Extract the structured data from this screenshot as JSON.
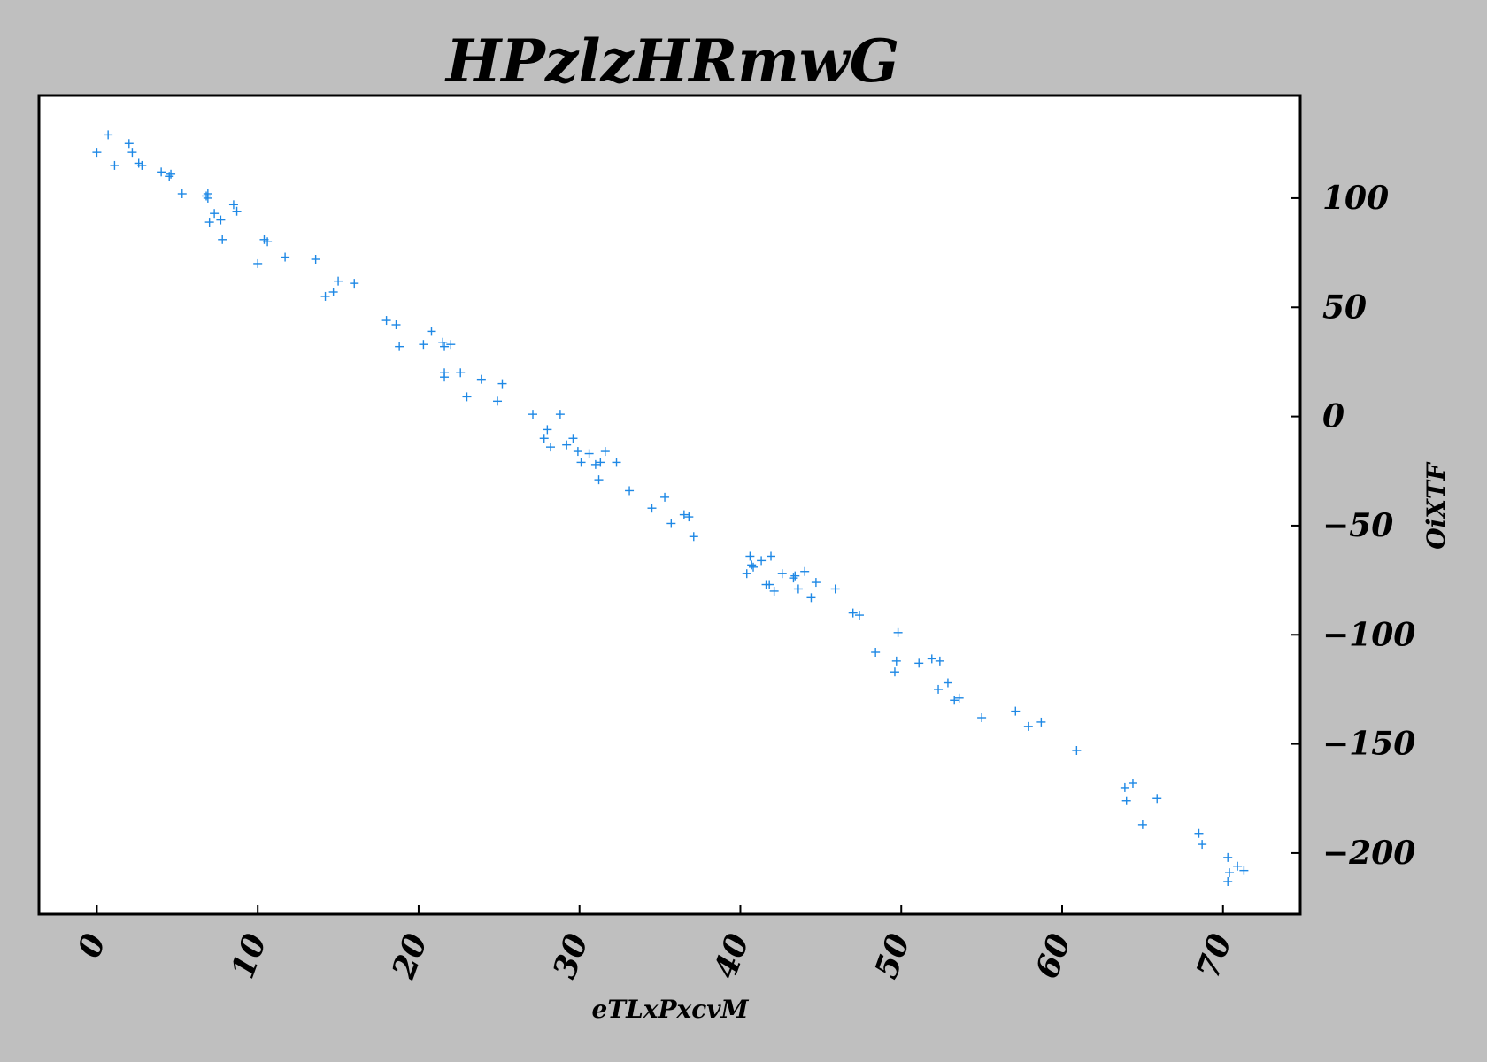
{
  "chart_data": {
    "type": "scatter",
    "title": "HPzlzHRmwG",
    "xlabel": "eTLxPxcvM",
    "ylabel": "OiXTF",
    "xlim": [
      -3.6,
      74.8
    ],
    "ylim": [
      -228,
      147
    ],
    "x_ticks": [
      0,
      10,
      20,
      30,
      40,
      50,
      60,
      70
    ],
    "x_tick_labels": [
      "0",
      "10",
      "20",
      "30",
      "40",
      "50",
      "60",
      "70"
    ],
    "y_ticks": [
      100,
      50,
      0,
      -50,
      -100,
      -150,
      -200
    ],
    "y_tick_labels": [
      "100",
      "50",
      "0",
      "−50",
      "−100",
      "−150",
      "−200"
    ],
    "y_axis_position": "right",
    "grid": false,
    "marker": "+",
    "colors": {
      "background": "#bfbfbf",
      "plot_area": "#ffffff",
      "points": "#1e88e5",
      "axis": "#000000"
    },
    "series": [
      {
        "values": [
          [
            0.0,
            121
          ],
          [
            0.7,
            129
          ],
          [
            1.1,
            115
          ],
          [
            2.0,
            125
          ],
          [
            2.2,
            121
          ],
          [
            2.6,
            116
          ],
          [
            2.8,
            115
          ],
          [
            4.0,
            112
          ],
          [
            4.5,
            110
          ],
          [
            4.6,
            111
          ],
          [
            5.3,
            102
          ],
          [
            6.8,
            101
          ],
          [
            6.9,
            100
          ],
          [
            6.9,
            102
          ],
          [
            7.0,
            89
          ],
          [
            7.3,
            93
          ],
          [
            7.7,
            90
          ],
          [
            7.8,
            81
          ],
          [
            8.5,
            97
          ],
          [
            8.7,
            94
          ],
          [
            10.0,
            70
          ],
          [
            10.4,
            81
          ],
          [
            10.6,
            80
          ],
          [
            11.7,
            73
          ],
          [
            13.6,
            72
          ],
          [
            14.2,
            55
          ],
          [
            14.7,
            57
          ],
          [
            15.0,
            62
          ],
          [
            16.0,
            61
          ],
          [
            18.0,
            44
          ],
          [
            18.6,
            42
          ],
          [
            18.8,
            32
          ],
          [
            20.3,
            33
          ],
          [
            20.8,
            39
          ],
          [
            21.5,
            34
          ],
          [
            21.6,
            32
          ],
          [
            21.6,
            20
          ],
          [
            21.6,
            18
          ],
          [
            22.0,
            33
          ],
          [
            22.6,
            20
          ],
          [
            23.0,
            9
          ],
          [
            23.9,
            17
          ],
          [
            24.9,
            7
          ],
          [
            25.2,
            15
          ],
          [
            27.1,
            1
          ],
          [
            27.8,
            -10
          ],
          [
            28.0,
            -6
          ],
          [
            28.2,
            -14
          ],
          [
            28.8,
            1
          ],
          [
            29.2,
            -13
          ],
          [
            29.6,
            -10
          ],
          [
            29.9,
            -16
          ],
          [
            30.1,
            -21
          ],
          [
            30.6,
            -17
          ],
          [
            31.0,
            -22
          ],
          [
            31.2,
            -29
          ],
          [
            31.3,
            -21
          ],
          [
            31.6,
            -16
          ],
          [
            32.3,
            -21
          ],
          [
            33.1,
            -34
          ],
          [
            34.5,
            -42
          ],
          [
            35.3,
            -37
          ],
          [
            35.7,
            -49
          ],
          [
            36.5,
            -45
          ],
          [
            36.8,
            -46
          ],
          [
            37.1,
            -55
          ],
          [
            40.4,
            -72
          ],
          [
            40.6,
            -64
          ],
          [
            40.7,
            -68
          ],
          [
            40.8,
            -69
          ],
          [
            41.3,
            -66
          ],
          [
            41.6,
            -77
          ],
          [
            41.8,
            -77
          ],
          [
            41.9,
            -64
          ],
          [
            42.1,
            -80
          ],
          [
            42.6,
            -72
          ],
          [
            43.3,
            -74
          ],
          [
            43.4,
            -73
          ],
          [
            43.6,
            -79
          ],
          [
            44.0,
            -71
          ],
          [
            44.4,
            -83
          ],
          [
            44.7,
            -76
          ],
          [
            45.9,
            -79
          ],
          [
            47.0,
            -90
          ],
          [
            47.4,
            -91
          ],
          [
            48.4,
            -108
          ],
          [
            49.6,
            -117
          ],
          [
            49.7,
            -112
          ],
          [
            49.8,
            -99
          ],
          [
            51.1,
            -113
          ],
          [
            51.9,
            -111
          ],
          [
            52.4,
            -112
          ],
          [
            52.3,
            -125
          ],
          [
            52.9,
            -122
          ],
          [
            53.3,
            -130
          ],
          [
            53.6,
            -129
          ],
          [
            55.0,
            -138
          ],
          [
            57.1,
            -135
          ],
          [
            57.9,
            -142
          ],
          [
            58.7,
            -140
          ],
          [
            60.9,
            -153
          ],
          [
            63.9,
            -170
          ],
          [
            64.0,
            -176
          ],
          [
            64.4,
            -168
          ],
          [
            65.0,
            -187
          ],
          [
            65.9,
            -175
          ],
          [
            68.5,
            -191
          ],
          [
            68.7,
            -196
          ],
          [
            70.3,
            -202
          ],
          [
            70.4,
            -209
          ],
          [
            70.3,
            -213
          ],
          [
            70.9,
            -206
          ],
          [
            71.3,
            -208
          ]
        ]
      }
    ]
  }
}
